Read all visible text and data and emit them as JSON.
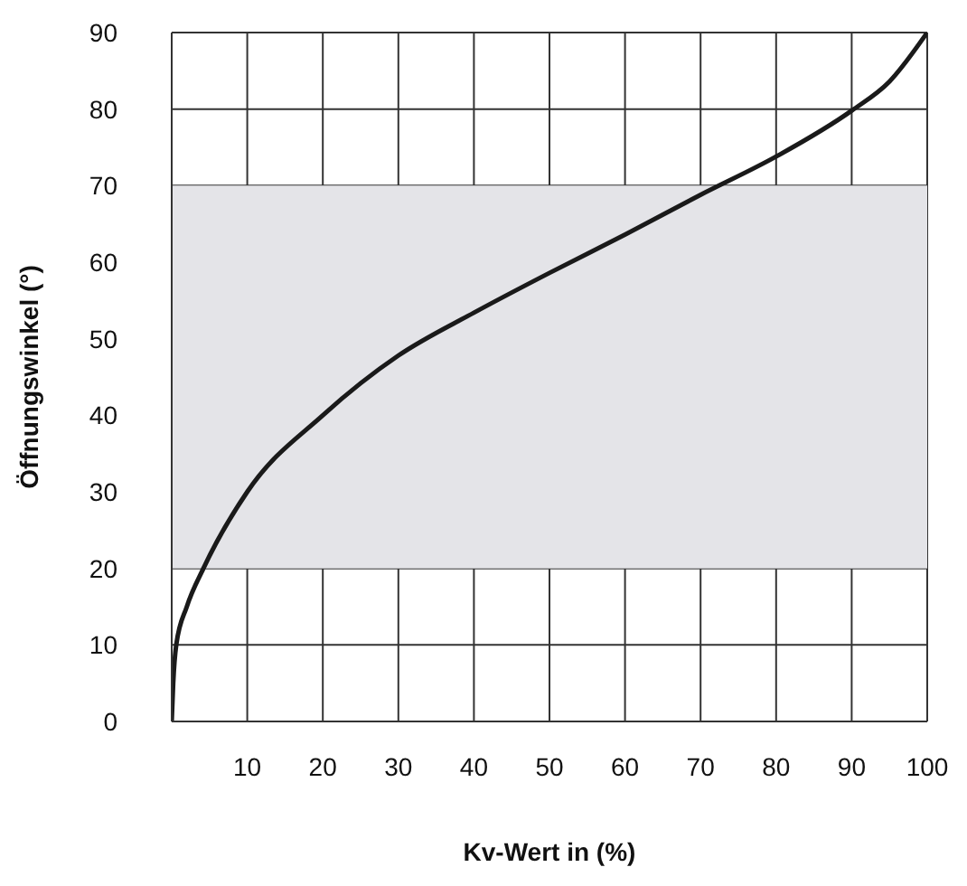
{
  "chart_data": {
    "type": "line",
    "xlabel": "Kv-Wert in (%)",
    "ylabel": "Öffnungswinkel (°)",
    "x": [
      0,
      0.2,
      0.6,
      2,
      4.2,
      10,
      20,
      30,
      40,
      50,
      60,
      70,
      80,
      90,
      95,
      100
    ],
    "series": [
      {
        "color": "#1a1a1a",
        "values": [
          0,
          5,
          10,
          15,
          20,
          30,
          40,
          47.8,
          53.4,
          58.6,
          63.6,
          68.8,
          73.8,
          79.8,
          83.6,
          90
        ]
      }
    ],
    "xlim": [
      0,
      100
    ],
    "xticks": [
      {
        "value": 0,
        "label": null
      },
      10,
      20,
      30,
      40,
      50,
      60,
      70,
      80,
      90,
      100
    ],
    "ylim": [
      0,
      90
    ],
    "yticks": [
      0,
      10,
      20,
      30,
      40,
      50,
      60,
      70,
      80,
      90
    ],
    "grid": true,
    "bands": [
      {
        "axis": "y",
        "from": 20,
        "to": 70,
        "color": "#e4e4e8"
      }
    ]
  }
}
